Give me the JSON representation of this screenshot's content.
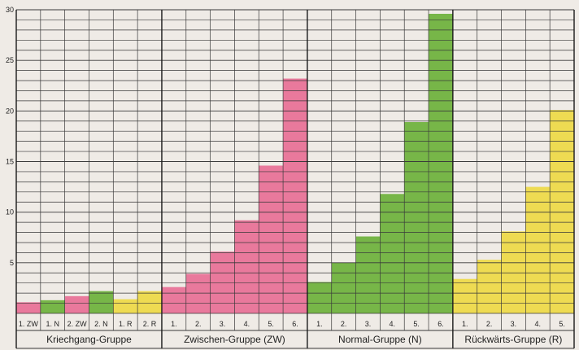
{
  "chart_data": {
    "type": "bar",
    "title": "",
    "xlabel": "",
    "ylabel": "",
    "ylim": [
      0,
      30
    ],
    "y_ticks": [
      5,
      10,
      15,
      20,
      25,
      30
    ],
    "grid": true,
    "groups": [
      {
        "name": "Kriechgang-Gruppe",
        "categories": [
          "1. ZW",
          "1. N",
          "2. ZW",
          "2. N",
          "1. R",
          "2. R"
        ],
        "values": [
          1.1,
          1.3,
          1.7,
          2.2,
          1.4,
          2.2
        ],
        "colors": [
          "#e9799c",
          "#77b648",
          "#e9799c",
          "#77b648",
          "#eedb52",
          "#eedb52"
        ]
      },
      {
        "name": "Zwischen-Gruppe (ZW)",
        "categories": [
          "1.",
          "2.",
          "3.",
          "4.",
          "5.",
          "6."
        ],
        "values": [
          2.6,
          3.9,
          6.1,
          9.2,
          14.6,
          23.2
        ],
        "colors": [
          "#e9799c",
          "#e9799c",
          "#e9799c",
          "#e9799c",
          "#e9799c",
          "#e9799c"
        ]
      },
      {
        "name": "Normal-Gruppe (N)",
        "categories": [
          "1.",
          "2.",
          "3.",
          "4.",
          "5.",
          "6."
        ],
        "values": [
          3.1,
          5.0,
          7.6,
          11.8,
          18.9,
          29.6
        ],
        "colors": [
          "#77b648",
          "#77b648",
          "#77b648",
          "#77b648",
          "#77b648",
          "#77b648"
        ]
      },
      {
        "name": "Rückwärts-Gruppe (R)",
        "categories": [
          "1.",
          "2.",
          "3.",
          "4.",
          "5."
        ],
        "values": [
          3.4,
          5.3,
          8.1,
          12.5,
          20.1
        ],
        "colors": [
          "#eedb52",
          "#eedb52",
          "#eedb52",
          "#eedb52",
          "#eedb52"
        ]
      }
    ]
  },
  "colors": {
    "background": "#efebe6",
    "grid": "#3a3a3a",
    "pink": "#e9799c",
    "green": "#77b648",
    "yellow": "#eedb52"
  }
}
